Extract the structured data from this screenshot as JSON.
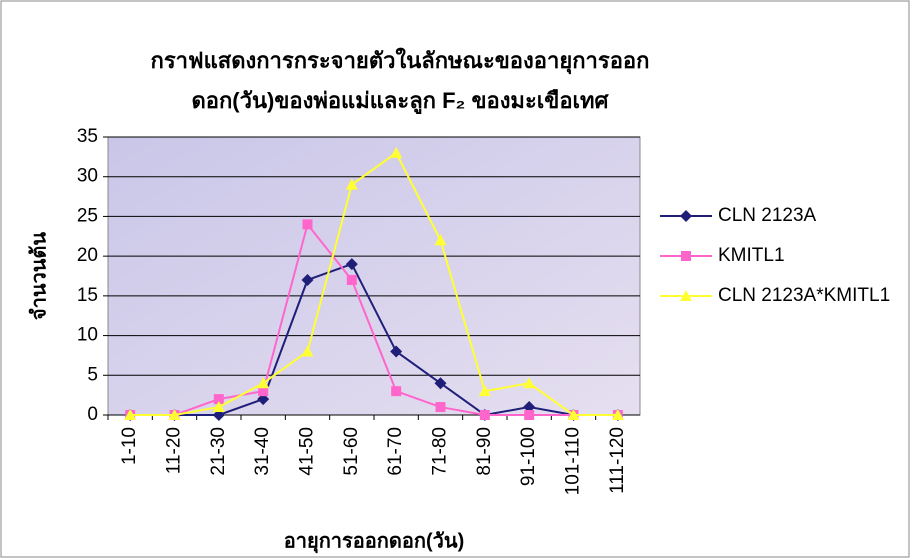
{
  "chart_data": {
    "type": "line",
    "title": [
      "กราฟแสดงการกระจายตัวในลักษณะของอายุการออก",
      "ดอก(วัน)ของพ่อแม่และลูก F₂ ของมะเขือเทศ"
    ],
    "x_label": "อายุการออกดอก(วัน)",
    "y_label": "จำนวนต้น",
    "categories": [
      "1-10",
      "11-20",
      "21-30",
      "31-40",
      "41-50",
      "51-60",
      "61-70",
      "71-80",
      "81-90",
      "91-100",
      "101-110",
      "111-120"
    ],
    "series": [
      {
        "name": "CLN 2123A",
        "color": "#1f1f7a",
        "marker": "diamond",
        "values": [
          0,
          0,
          0,
          2,
          17,
          19,
          8,
          4,
          0,
          1,
          0,
          0
        ]
      },
      {
        "name": "KMITL1",
        "color": "#ff66cc",
        "marker": "square",
        "values": [
          0,
          0,
          2,
          3,
          24,
          17,
          3,
          1,
          0,
          0,
          0,
          0
        ]
      },
      {
        "name": "CLN 2123A*KMITL1",
        "color": "#ffff33",
        "marker": "triangle",
        "values": [
          0,
          0,
          1,
          4,
          8,
          29,
          33,
          22,
          3,
          4,
          0,
          0
        ]
      }
    ],
    "ylim": [
      0,
      35
    ],
    "yticks": [
      0,
      5,
      10,
      15,
      20,
      25,
      30,
      35
    ],
    "grid": true,
    "legend": "right"
  }
}
